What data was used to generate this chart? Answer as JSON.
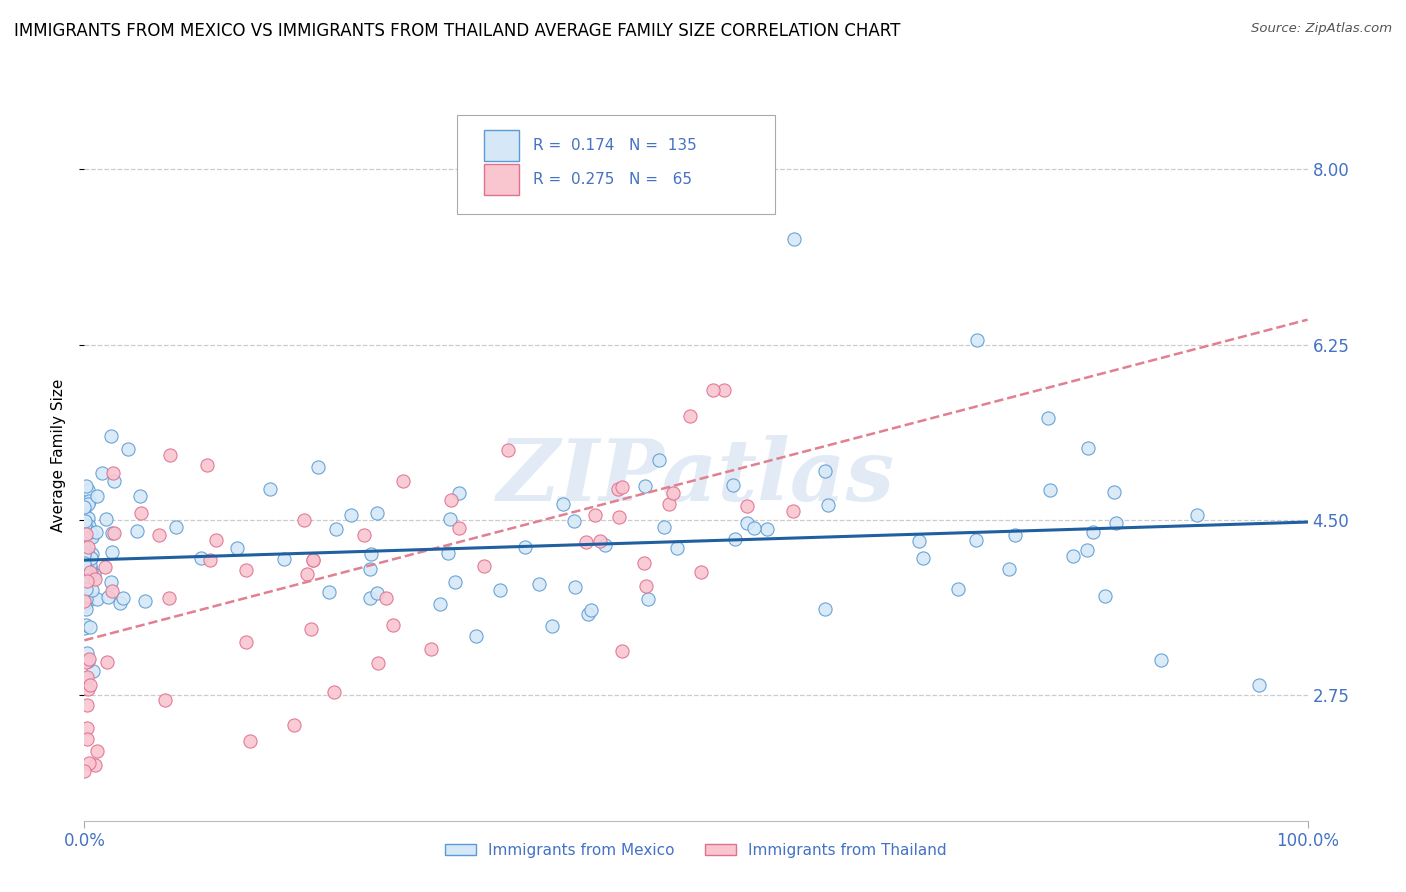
{
  "title": "IMMIGRANTS FROM MEXICO VS IMMIGRANTS FROM THAILAND AVERAGE FAMILY SIZE CORRELATION CHART",
  "source": "Source: ZipAtlas.com",
  "ylabel": "Average Family Size",
  "xlim": [
    0.0,
    1.0
  ],
  "ylim": [
    1.5,
    8.8
  ],
  "yticks": [
    2.75,
    4.5,
    6.25,
    8.0
  ],
  "xticklabels": [
    "0.0%",
    "100.0%"
  ],
  "mexico_color": "#d6e8f7",
  "mexico_edge": "#5b9bd5",
  "thailand_color": "#f9c6d0",
  "thailand_edge": "#e07090",
  "trend_mexico_color": "#2060a0",
  "trend_thailand_color": "#e08090",
  "legend_R_mexico": "0.174",
  "legend_N_mexico": "135",
  "legend_R_thailand": "0.275",
  "legend_N_thailand": "65",
  "watermark": "ZIPatlas",
  "background_color": "#ffffff",
  "grid_color": "#cccccc",
  "axis_color": "#4472c4",
  "title_fontsize": 12,
  "label_fontsize": 11,
  "tick_fontsize": 12,
  "mexico_intercept": 4.1,
  "mexico_slope": 0.38,
  "thailand_intercept": 3.3,
  "thailand_slope": 3.2
}
